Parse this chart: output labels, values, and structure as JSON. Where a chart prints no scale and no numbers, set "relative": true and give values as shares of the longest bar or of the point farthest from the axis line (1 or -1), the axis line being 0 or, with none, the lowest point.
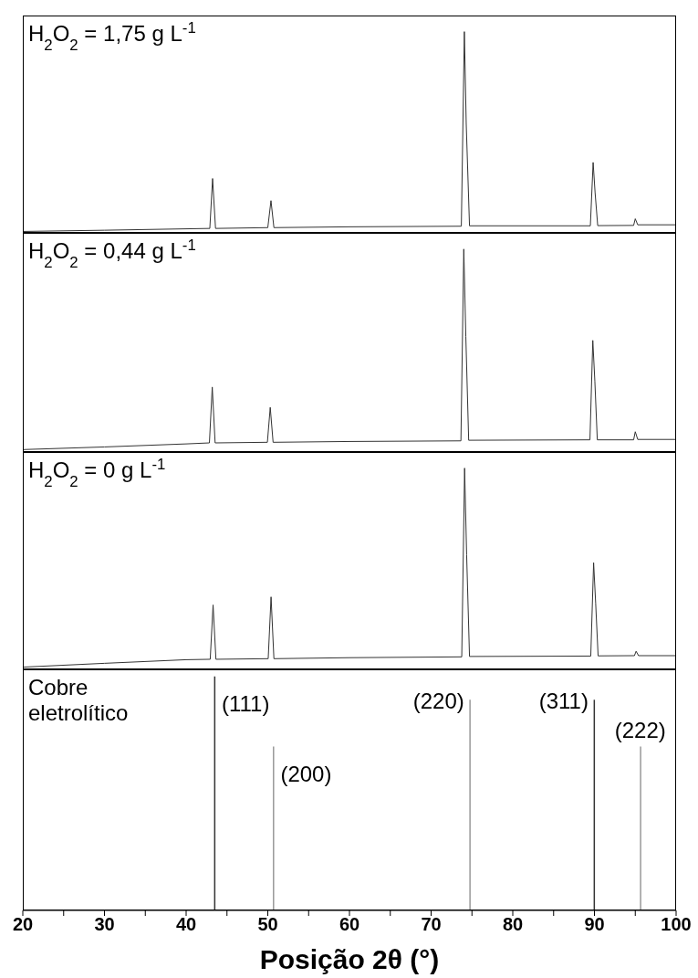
{
  "chart_data": [
    {
      "type": "line",
      "title": "H$_{2}$O$_{2}$ = 1,75 g L$^{-1}$",
      "relative": true,
      "xlim": [
        20,
        100
      ],
      "tick_labels": false,
      "series": [
        {
          "color": "#333333",
          "x": [
            20,
            30,
            40,
            42.9,
            43.24,
            43.6,
            50.0,
            50.39,
            50.75,
            60,
            73.7,
            74.07,
            74.3,
            74.7,
            89.5,
            89.84,
            90.08,
            90.4,
            94.8,
            95.0,
            95.3,
            100
          ],
          "values": [
            0.007,
            0.013,
            0.02,
            0.022,
            0.27,
            0.022,
            0.026,
            0.16,
            0.026,
            0.03,
            0.033,
            1.0,
            0.54,
            0.035,
            0.035,
            0.35,
            0.2,
            0.036,
            0.037,
            0.07,
            0.04,
            0.04
          ]
        }
      ]
    },
    {
      "type": "line",
      "title": "H$_{2}$O$_{2}$ = 0,44 g L$^{-1}$",
      "relative": true,
      "xlim": [
        20,
        100
      ],
      "tick_labels": false,
      "series": [
        {
          "color": "#333333",
          "x": [
            20,
            30,
            40,
            42.85,
            43.2,
            43.55,
            49.95,
            50.3,
            50.65,
            60,
            73.65,
            74.0,
            74.25,
            74.6,
            89.45,
            89.8,
            90.05,
            90.35,
            94.8,
            95.0,
            95.3,
            100
          ],
          "values": [
            0.012,
            0.025,
            0.04,
            0.045,
            0.32,
            0.045,
            0.048,
            0.22,
            0.048,
            0.052,
            0.055,
            1.0,
            0.57,
            0.058,
            0.06,
            0.55,
            0.35,
            0.06,
            0.06,
            0.1,
            0.062,
            0.062
          ]
        }
      ]
    },
    {
      "type": "line",
      "title": "H$_{2}$O$_{2}$ = 0 g L$^{-1}$",
      "relative": true,
      "xlim": [
        20,
        100
      ],
      "tick_labels": false,
      "series": [
        {
          "color": "#333333",
          "x": [
            20,
            30,
            40,
            42.95,
            43.3,
            43.65,
            50.05,
            50.4,
            50.75,
            60,
            73.75,
            74.1,
            74.35,
            74.7,
            89.55,
            89.9,
            90.15,
            90.45,
            94.9,
            95.1,
            95.4,
            100
          ],
          "values": [
            0.011,
            0.03,
            0.048,
            0.05,
            0.32,
            0.05,
            0.053,
            0.36,
            0.053,
            0.058,
            0.062,
            1.0,
            0.57,
            0.064,
            0.066,
            0.53,
            0.33,
            0.067,
            0.068,
            0.09,
            0.068,
            0.068
          ]
        }
      ]
    },
    {
      "type": "bar",
      "title": "Cobre eletrolítico",
      "xlabel": "Posição 2θ (°)",
      "relative": true,
      "xlim": [
        20,
        100
      ],
      "tick_labels": "x",
      "xticks": [
        20,
        {
          "value": 25,
          "label": null
        },
        30,
        {
          "value": 35,
          "label": null
        },
        40,
        {
          "value": 45,
          "label": null
        },
        50,
        {
          "value": 55,
          "label": null
        },
        60,
        {
          "value": 65,
          "label": null
        },
        70,
        {
          "value": 75,
          "label": null
        },
        80,
        {
          "value": 85,
          "label": null
        },
        90,
        {
          "value": 95,
          "label": null
        },
        100
      ],
      "x": [
        43.46,
        50.66,
        74.72,
        89.94,
        95.61
      ],
      "values": [
        1.0,
        0.7,
        0.9,
        0.9,
        0.7
      ],
      "colors": [
        "#333333",
        "#999999",
        "#999999",
        "#333333",
        "#999999"
      ],
      "annotations": [
        {
          "text": "(111)",
          "x": 43.46,
          "y": 1.0
        },
        {
          "text": "(200)",
          "x": 50.66,
          "y": 0.7
        },
        {
          "text": "(220)",
          "x": 74.72,
          "y": 0.9
        },
        {
          "text": "(311)",
          "x": 89.94,
          "y": 0.9
        },
        {
          "text": "(222)",
          "x": 95.61,
          "y": 0.7
        }
      ]
    }
  ]
}
